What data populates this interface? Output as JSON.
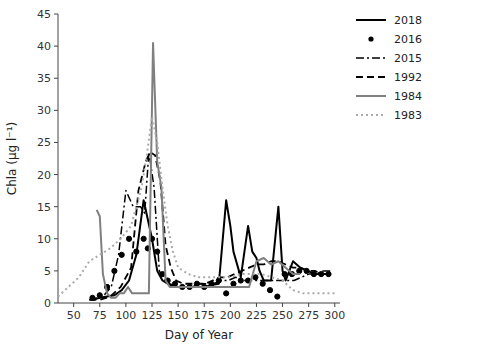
{
  "chart_data": {
    "type": "line",
    "x_label": "Day of Year",
    "y_label": "Chla (µg l⁻¹)",
    "xlim": [
      35,
      305
    ],
    "ylim": [
      0,
      45
    ],
    "xticks": [
      50,
      75,
      100,
      125,
      150,
      175,
      200,
      225,
      250,
      275,
      300
    ],
    "yticks": [
      0,
      5,
      10,
      15,
      20,
      25,
      30,
      35,
      40,
      45
    ],
    "grid": false,
    "legend": "right",
    "series": [
      {
        "name": "2018",
        "type": "line",
        "color": "#000000",
        "line_style": "solid",
        "x": [
          68,
          75,
          82,
          89,
          96,
          103,
          110,
          117,
          121,
          125,
          130,
          135,
          140,
          147,
          154,
          161,
          168,
          175,
          182,
          189,
          196,
          200,
          203,
          210,
          217,
          221,
          225,
          228,
          232,
          239,
          246,
          250,
          253,
          260,
          267,
          274,
          281,
          288,
          295
        ],
        "values": [
          0.5,
          0.8,
          1.0,
          1.2,
          2.0,
          3.5,
          7.5,
          16.0,
          13.0,
          10.0,
          5.0,
          3.5,
          3.0,
          2.5,
          2.5,
          2.5,
          2.5,
          2.5,
          2.8,
          3.0,
          16.0,
          12.0,
          8.0,
          4.0,
          12.0,
          8.0,
          7.0,
          5.0,
          3.5,
          3.5,
          15.0,
          5.0,
          3.5,
          6.5,
          5.5,
          5.0,
          4.5,
          4.5,
          4.5
        ]
      },
      {
        "name": "2016",
        "type": "scatter",
        "color": "#000000",
        "marker": "circle",
        "x": [
          68,
          75,
          82,
          89,
          96,
          103,
          110,
          117,
          121,
          125,
          130,
          135,
          140,
          147,
          154,
          161,
          168,
          175,
          182,
          189,
          196,
          203,
          210,
          217,
          224,
          231,
          238,
          245,
          252,
          259,
          266,
          273,
          280,
          287,
          294
        ],
        "values": [
          0.8,
          1.2,
          2.5,
          5.0,
          7.5,
          10.0,
          8.0,
          10.0,
          8.5,
          10.0,
          8.0,
          4.5,
          3.5,
          3.0,
          2.5,
          2.5,
          3.0,
          2.5,
          3.0,
          3.5,
          1.5,
          3.0,
          3.5,
          3.5,
          4.0,
          3.0,
          2.0,
          1.0,
          4.5,
          4.5,
          5.0,
          5.0,
          4.5,
          4.5,
          4.5
        ]
      },
      {
        "name": "2015",
        "type": "line",
        "color": "#000000",
        "line_style": "dashdot",
        "x": [
          65,
          72,
          79,
          86,
          93,
          100,
          107,
          114,
          118,
          122,
          127,
          132,
          137,
          142,
          149,
          156,
          163,
          170,
          177,
          184,
          191,
          198,
          205,
          212,
          219,
          226,
          233,
          240,
          247,
          254,
          261,
          268,
          275,
          282,
          289,
          296
        ],
        "values": [
          0.5,
          0.8,
          1.2,
          2.5,
          7.5,
          17.5,
          15.0,
          15.0,
          14.0,
          23.5,
          18.0,
          5.0,
          3.5,
          3.0,
          2.5,
          2.5,
          2.5,
          3.0,
          3.0,
          3.0,
          3.5,
          3.5,
          4.0,
          3.5,
          3.5,
          3.5,
          3.5,
          3.5,
          3.5,
          3.5,
          3.5,
          4.0,
          4.5,
          4.5,
          5.0,
          5.0
        ]
      },
      {
        "name": "1992",
        "type": "line",
        "color": "#000000",
        "line_style": "dashed",
        "x": [
          65,
          75,
          85,
          95,
          105,
          112,
          119,
          123,
          128,
          133,
          138,
          143,
          148,
          155,
          162,
          169,
          176,
          183,
          190,
          197,
          204,
          211,
          218,
          225,
          232,
          239,
          246,
          253,
          260,
          267,
          274,
          281,
          288,
          295
        ],
        "values": [
          0.5,
          0.5,
          1.0,
          2.5,
          5.5,
          17.5,
          22.0,
          23.5,
          23.0,
          19.0,
          9.0,
          5.5,
          3.5,
          3.0,
          3.0,
          3.0,
          3.0,
          3.5,
          4.0,
          4.0,
          4.5,
          5.0,
          5.5,
          6.0,
          6.0,
          6.5,
          6.5,
          6.0,
          5.5,
          5.5,
          5.0,
          5.0,
          4.5,
          4.5
        ]
      },
      {
        "name": "1984",
        "type": "line",
        "color": "#808080",
        "line_style": "solid",
        "x": [
          72,
          75,
          78,
          82,
          86,
          90,
          94,
          98,
          102,
          106,
          110,
          114,
          118,
          122,
          126,
          130,
          134,
          138,
          142,
          148,
          155,
          162,
          169,
          176,
          183,
          190,
          197,
          204,
          211,
          218,
          225,
          232,
          239,
          246,
          253,
          260,
          267
        ],
        "values": [
          14.5,
          13.5,
          4.5,
          1.5,
          0.8,
          0.8,
          1.5,
          1.5,
          2.5,
          1.5,
          1.5,
          1.5,
          1.5,
          1.5,
          40.5,
          22.0,
          18.0,
          3.5,
          2.5,
          2.5,
          2.5,
          2.5,
          2.5,
          2.5,
          2.5,
          2.5,
          2.5,
          2.5,
          2.5,
          2.5,
          6.5,
          7.0,
          6.0,
          6.5,
          5.5,
          4.5,
          4.5
        ]
      },
      {
        "name": "1983",
        "type": "line",
        "color": "#aaaaaa",
        "line_style": "dotted",
        "x": [
          35,
          45,
          55,
          65,
          75,
          85,
          95,
          105,
          115,
          120,
          125,
          130,
          135,
          140,
          145,
          150,
          160,
          170,
          180,
          190,
          200,
          210,
          220,
          230,
          240,
          250,
          260,
          270,
          280,
          290,
          300
        ],
        "values": [
          1.0,
          2.5,
          4.0,
          6.5,
          7.5,
          8.5,
          10.0,
          12.0,
          18.0,
          23.0,
          29.0,
          25.0,
          18.0,
          12.0,
          8.0,
          5.5,
          4.5,
          4.0,
          4.0,
          4.0,
          4.0,
          4.5,
          4.5,
          4.5,
          4.0,
          3.5,
          2.0,
          1.5,
          1.5,
          1.5,
          1.5
        ]
      }
    ]
  }
}
